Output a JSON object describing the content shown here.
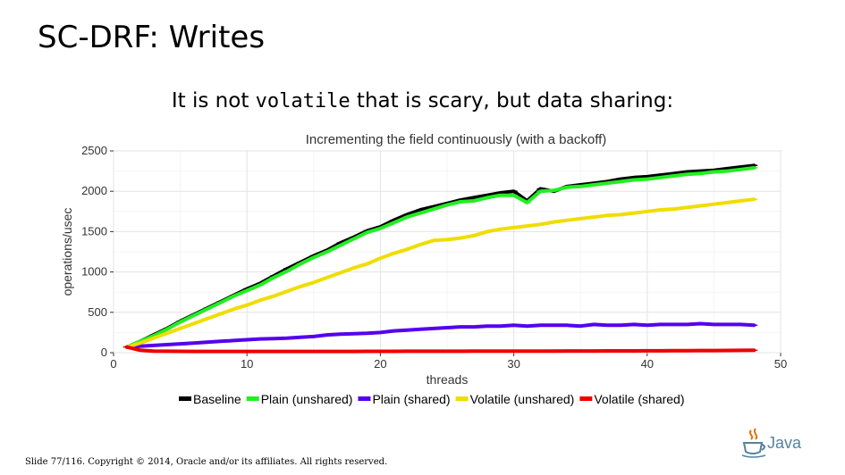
{
  "slide": {
    "title": "SC-DRF: Writes",
    "subtitle_pre": "It is not ",
    "subtitle_code": "volatile",
    "subtitle_post": " that is scary, but data sharing:",
    "footer": "Slide 77/116. Copyright © 2014, Oracle and/or its affiliates. All rights reserved.",
    "logo_text": "Java"
  },
  "chart_data": {
    "type": "line",
    "title": "Incrementing the field continuously (with a backoff)",
    "xlabel": "threads",
    "ylabel": "operations/usec",
    "xlim": [
      0,
      50
    ],
    "ylim": [
      0,
      2500
    ],
    "xticks": [
      0,
      10,
      20,
      30,
      40,
      50
    ],
    "yticks": [
      0,
      500,
      1000,
      1500,
      2000,
      2500
    ],
    "grid": true,
    "legend_position": "bottom",
    "x": [
      1,
      2,
      3,
      4,
      5,
      6,
      7,
      8,
      9,
      10,
      11,
      12,
      13,
      14,
      15,
      16,
      17,
      18,
      19,
      20,
      21,
      22,
      23,
      24,
      25,
      26,
      27,
      28,
      29,
      30,
      31,
      32,
      33,
      34,
      35,
      36,
      37,
      38,
      39,
      40,
      41,
      42,
      43,
      44,
      45,
      46,
      47,
      48
    ],
    "series": [
      {
        "name": "Baseline",
        "color": "#000000",
        "values": [
          70,
          140,
          220,
          300,
          390,
          470,
          550,
          630,
          710,
          790,
          860,
          950,
          1040,
          1120,
          1200,
          1270,
          1360,
          1430,
          1510,
          1560,
          1640,
          1710,
          1770,
          1810,
          1850,
          1890,
          1920,
          1950,
          1980,
          2000,
          1880,
          2030,
          2000,
          2060,
          2080,
          2100,
          2120,
          2150,
          2170,
          2180,
          2200,
          2220,
          2240,
          2250,
          2260,
          2280,
          2300,
          2320
        ]
      },
      {
        "name": "Plain (unshared)",
        "color": "#22ee22",
        "values": [
          70,
          140,
          210,
          290,
          380,
          460,
          540,
          620,
          700,
          770,
          840,
          930,
          1010,
          1100,
          1180,
          1250,
          1330,
          1410,
          1490,
          1540,
          1610,
          1680,
          1730,
          1780,
          1830,
          1870,
          1880,
          1920,
          1950,
          1950,
          1860,
          2000,
          2010,
          2050,
          2060,
          2080,
          2100,
          2120,
          2140,
          2150,
          2170,
          2190,
          2210,
          2220,
          2240,
          2250,
          2270,
          2290
        ]
      },
      {
        "name": "Plain (shared)",
        "color": "#5500ee",
        "values": [
          70,
          80,
          90,
          100,
          110,
          120,
          130,
          140,
          150,
          160,
          170,
          175,
          180,
          190,
          200,
          220,
          230,
          235,
          240,
          250,
          270,
          280,
          290,
          300,
          310,
          320,
          320,
          330,
          330,
          340,
          330,
          340,
          340,
          340,
          330,
          350,
          340,
          340,
          350,
          340,
          350,
          350,
          350,
          360,
          350,
          350,
          350,
          340
        ]
      },
      {
        "name": "Volatile (unshared)",
        "color": "#f0dd00",
        "values": [
          70,
          120,
          180,
          240,
          300,
          360,
          420,
          480,
          540,
          590,
          650,
          700,
          760,
          820,
          870,
          930,
          990,
          1050,
          1100,
          1170,
          1230,
          1280,
          1340,
          1390,
          1400,
          1420,
          1450,
          1500,
          1530,
          1550,
          1570,
          1590,
          1620,
          1640,
          1660,
          1680,
          1700,
          1710,
          1730,
          1750,
          1770,
          1780,
          1800,
          1820,
          1840,
          1860,
          1880,
          1900
        ]
      },
      {
        "name": "Volatile (shared)",
        "color": "#ee0000",
        "values": [
          70,
          30,
          20,
          18,
          17,
          16,
          15,
          15,
          15,
          15,
          15,
          15,
          15,
          15,
          16,
          16,
          16,
          16,
          17,
          17,
          17,
          18,
          18,
          18,
          18,
          18,
          19,
          19,
          19,
          20,
          20,
          20,
          20,
          21,
          21,
          21,
          22,
          22,
          22,
          23,
          23,
          24,
          25,
          26,
          27,
          28,
          29,
          30
        ]
      }
    ]
  }
}
